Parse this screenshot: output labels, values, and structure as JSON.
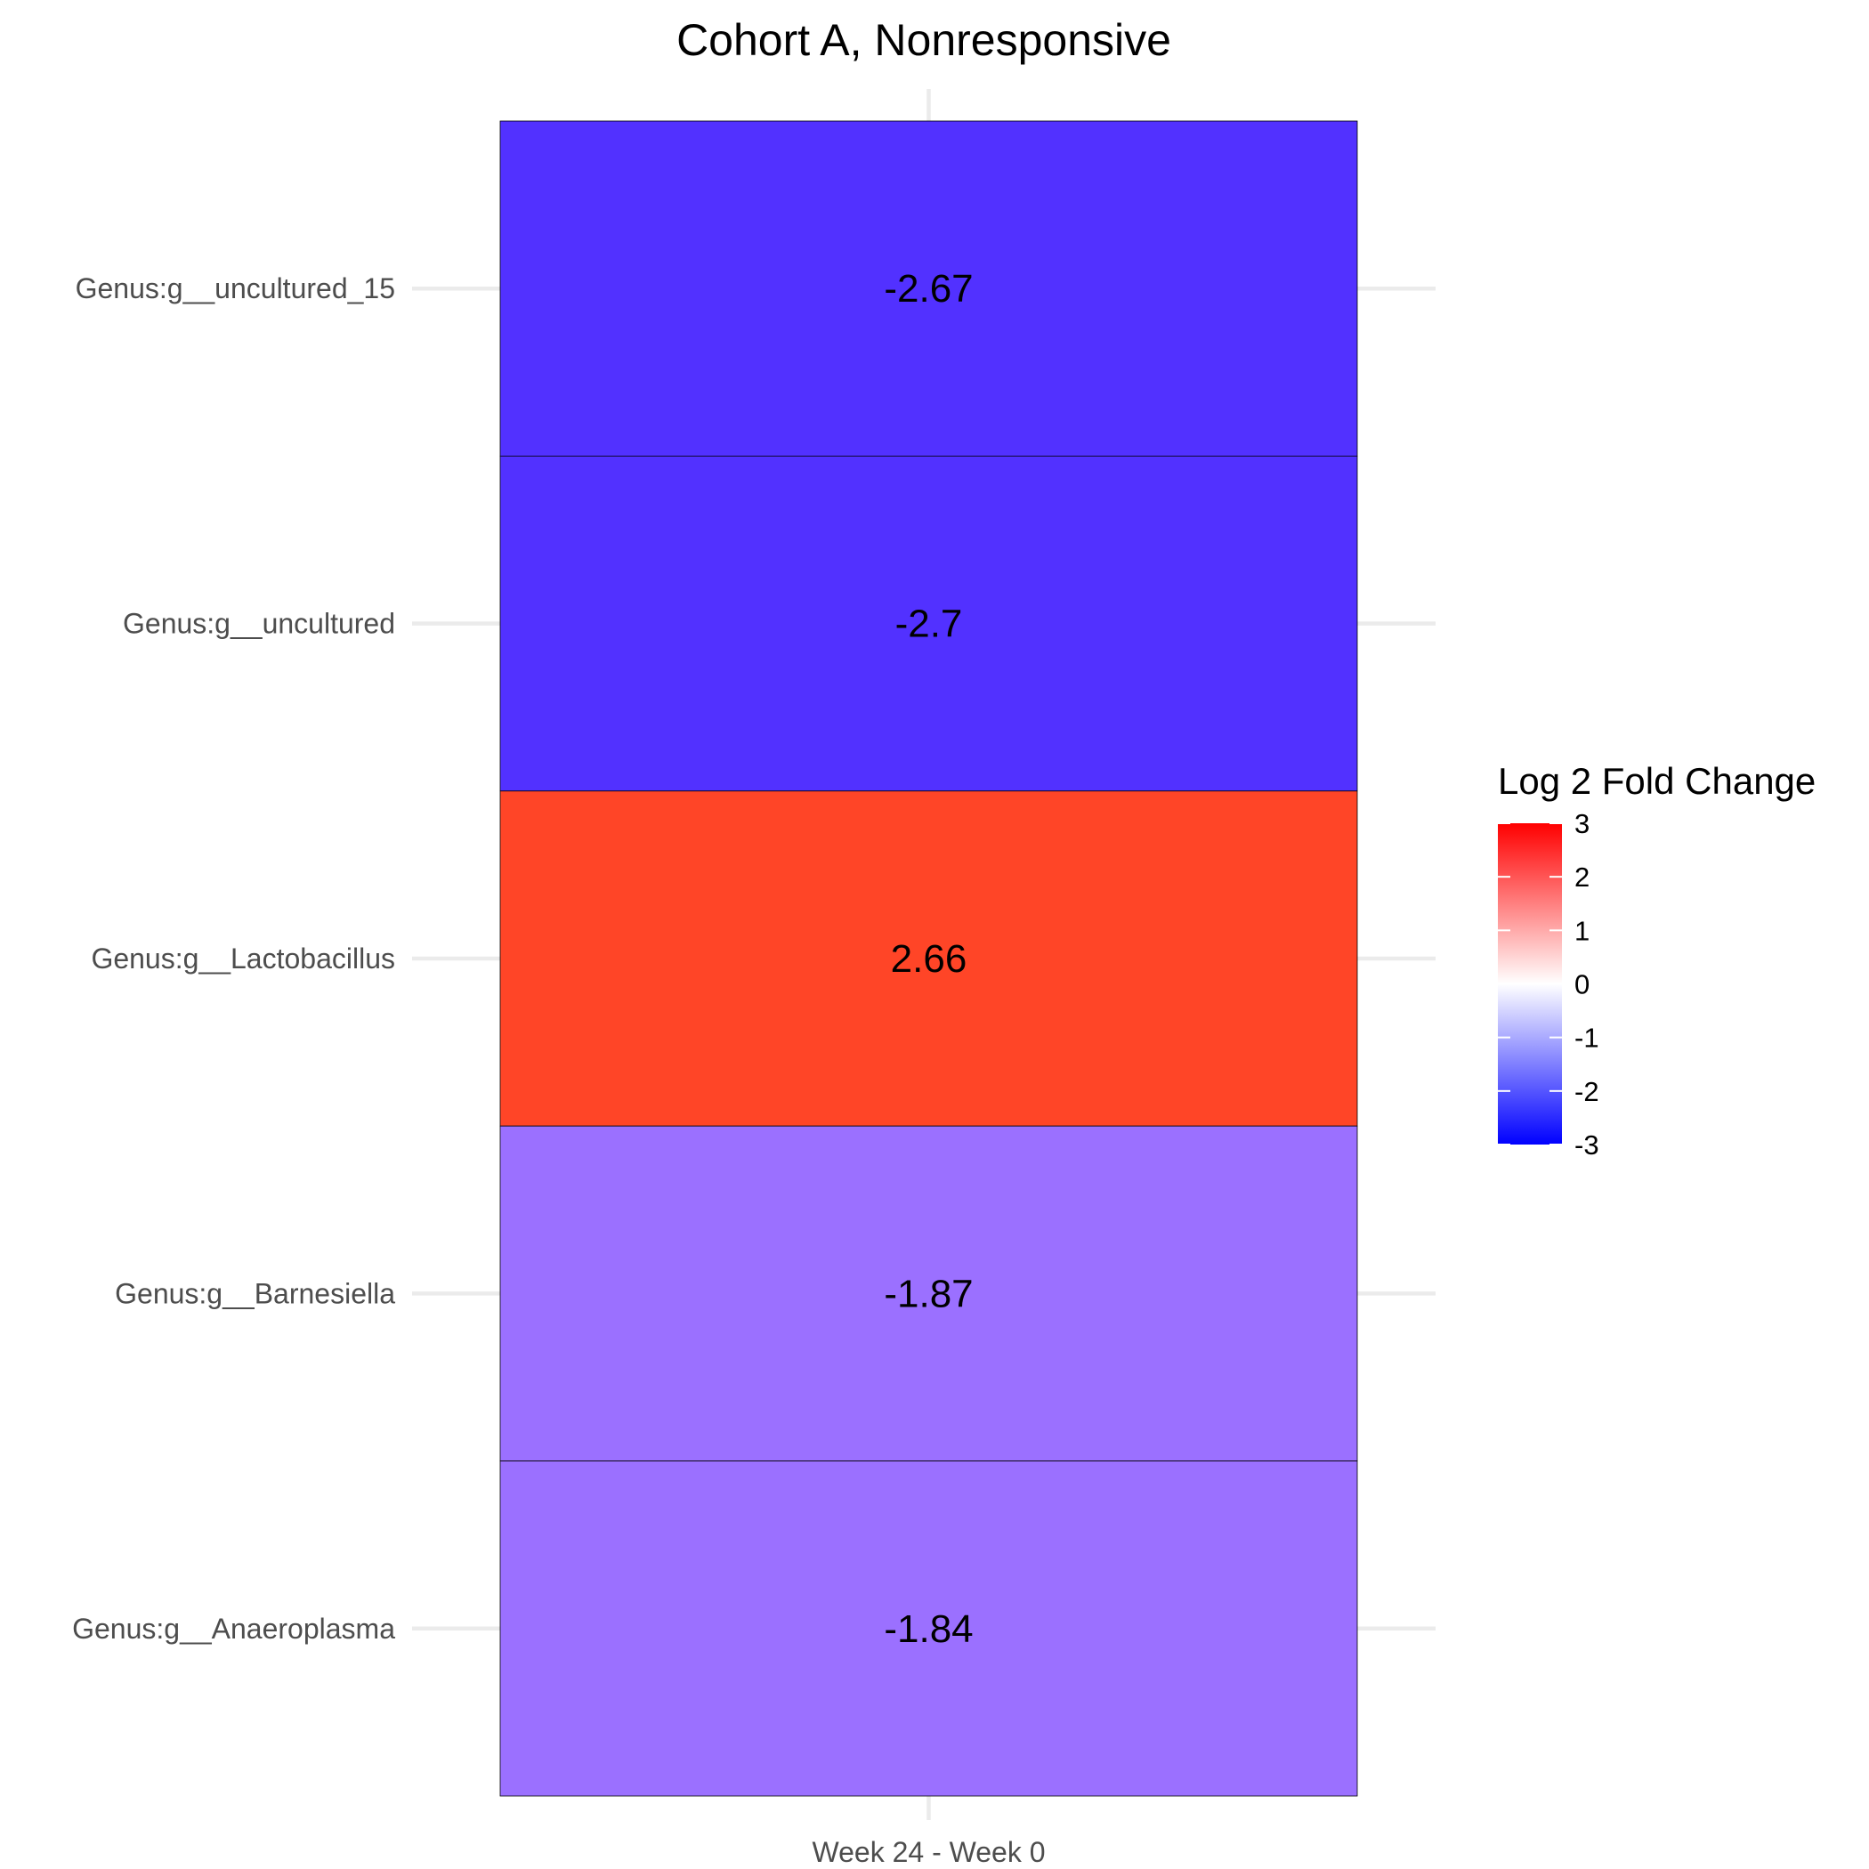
{
  "chart_data": {
    "type": "heatmap",
    "title": "Cohort A, Nonresponsive",
    "x_categories": [
      "Week 24 - Week 0"
    ],
    "y_categories": [
      "Genus:g__uncultured_15",
      "Genus:g__uncultured",
      "Genus:g__Lactobacillus",
      "Genus:g__Barnesiella",
      "Genus:g__Anaeroplasma"
    ],
    "values": [
      -2.67,
      -2.7,
      2.66,
      -1.87,
      -1.84
    ],
    "value_labels": [
      "-2.67",
      "-2.7",
      "2.66",
      "-1.87",
      "-1.84"
    ],
    "cell_colors": [
      "#5231ff",
      "#5231ff",
      "#ff4527",
      "#9b70ff",
      "#9b70ff"
    ],
    "legend": {
      "title": "Log 2 Fold Change",
      "position": "right",
      "range": [
        -3,
        3
      ],
      "ticks": [
        3,
        2,
        1,
        0,
        -1,
        -2,
        -3
      ],
      "tick_labels": [
        "3",
        "2",
        "1",
        "0",
        "-1",
        "-2",
        "-3"
      ],
      "low_color": "#0000ff",
      "mid_color": "#ffffff",
      "high_color": "#ff0000"
    },
    "grid": true
  }
}
